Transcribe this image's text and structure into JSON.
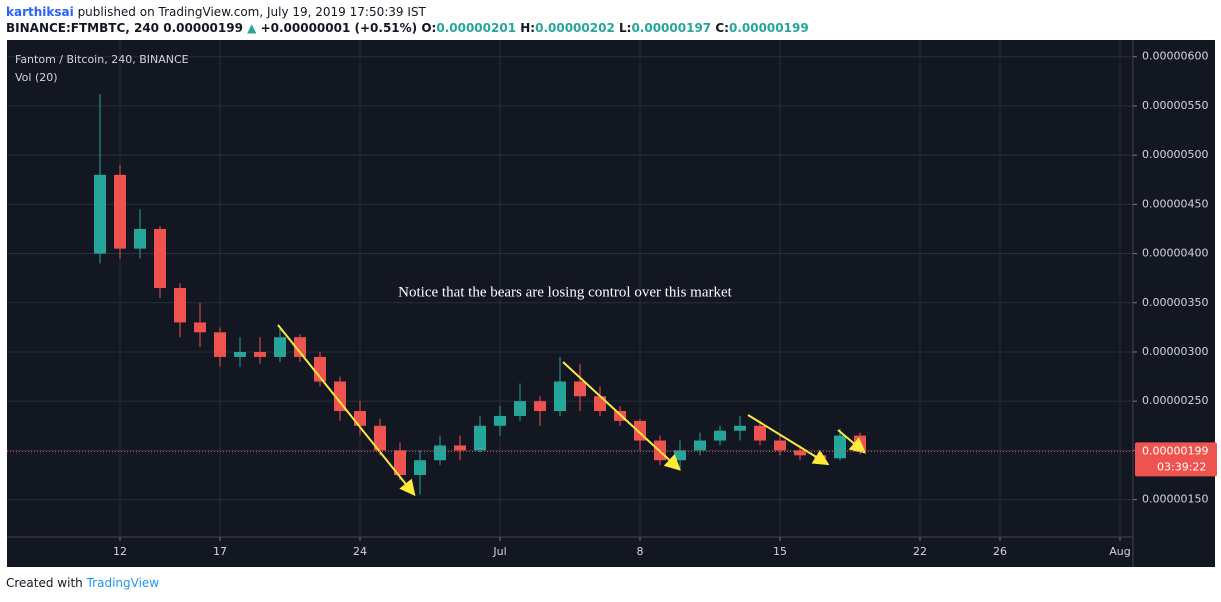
{
  "header": {
    "author": "karthiksai",
    "published": "published on TradingView.com, July 19, 2019 17:50:39 IST",
    "symbol": "BINANCE:FTMBTC, 240",
    "last": "0.00000199",
    "arrow": "▲",
    "change": "+0.00000001 (+0.51%)",
    "o_label": "O:",
    "o": "0.00000201",
    "h_label": "H:",
    "h": "0.00000202",
    "l_label": "L:",
    "l": "0.00000197",
    "c_label": "C:",
    "c": "0.00000199"
  },
  "chart_data": {
    "type": "candlestick",
    "title": "Fantom / Bitcoin, 240, BINANCE",
    "subtitle": "Vol (20)",
    "annotation": "Notice that the bears are losing control over this market",
    "up_color": "#26a69a",
    "down_color": "#ef5350",
    "x": [
      11,
      12,
      13,
      14,
      15,
      16,
      17,
      18,
      19,
      20,
      21,
      22,
      23,
      24,
      25,
      26,
      27,
      28,
      29,
      30,
      31,
      32,
      33,
      34,
      35,
      36,
      37,
      38,
      39,
      40,
      41,
      42,
      43,
      44,
      45,
      46,
      47,
      48,
      49
    ],
    "open": [
      4e-06,
      4.8e-06,
      4.05e-06,
      4.25e-06,
      3.65e-06,
      3.3e-06,
      3.2e-06,
      2.95e-06,
      3e-06,
      2.95e-06,
      3.15e-06,
      2.95e-06,
      2.7e-06,
      2.4e-06,
      2.25e-06,
      2e-06,
      1.75e-06,
      1.9e-06,
      2.05e-06,
      2e-06,
      2.25e-06,
      2.35e-06,
      2.5e-06,
      2.4e-06,
      2.7e-06,
      2.55e-06,
      2.4e-06,
      2.3e-06,
      2.1e-06,
      1.9e-06,
      2e-06,
      2.1e-06,
      2.2e-06,
      2.25e-06,
      2.1e-06,
      2e-06,
      1.95e-06,
      1.92e-06,
      2.15e-06
    ],
    "high": [
      5.62e-06,
      4.9e-06,
      4.45e-06,
      4.28e-06,
      3.7e-06,
      3.5e-06,
      3.25e-06,
      3.15e-06,
      3.15e-06,
      3.25e-06,
      3.18e-06,
      3e-06,
      2.75e-06,
      2.5e-06,
      2.32e-06,
      2.08e-06,
      2e-06,
      2.15e-06,
      2.15e-06,
      2.35e-06,
      2.45e-06,
      2.68e-06,
      2.55e-06,
      2.95e-06,
      2.88e-06,
      2.65e-06,
      2.45e-06,
      2.32e-06,
      2.15e-06,
      2.1e-06,
      2.18e-06,
      2.25e-06,
      2.35e-06,
      2.3e-06,
      2.15e-06,
      2.05e-06,
      2e-06,
      2.22e-06,
      2.18e-06
    ],
    "low": [
      3.9e-06,
      3.95e-06,
      3.95e-06,
      3.55e-06,
      3.15e-06,
      3.05e-06,
      2.85e-06,
      2.85e-06,
      2.88e-06,
      2.9e-06,
      2.9e-06,
      2.65e-06,
      2.3e-06,
      2.15e-06,
      1.95e-06,
      1.7e-06,
      1.55e-06,
      1.85e-06,
      1.9e-06,
      1.98e-06,
      2.15e-06,
      2.3e-06,
      2.25e-06,
      2.35e-06,
      2.4e-06,
      2.35e-06,
      2.25e-06,
      2e-06,
      1.85e-06,
      1.8e-06,
      1.95e-06,
      2.05e-06,
      2.1e-06,
      2.05e-06,
      1.95e-06,
      1.9e-06,
      1.88e-06,
      1.9e-06,
      1.96e-06
    ],
    "close": [
      4.8e-06,
      4.05e-06,
      4.25e-06,
      3.65e-06,
      3.3e-06,
      3.2e-06,
      2.95e-06,
      3e-06,
      2.95e-06,
      3.15e-06,
      2.95e-06,
      2.7e-06,
      2.4e-06,
      2.25e-06,
      2e-06,
      1.75e-06,
      1.9e-06,
      2.05e-06,
      2e-06,
      2.25e-06,
      2.35e-06,
      2.5e-06,
      2.4e-06,
      2.7e-06,
      2.55e-06,
      2.4e-06,
      2.3e-06,
      2.1e-06,
      1.9e-06,
      2e-06,
      2.1e-06,
      2.2e-06,
      2.25e-06,
      2.1e-06,
      2e-06,
      1.95e-06,
      1.92e-06,
      2.15e-06,
      1.99e-06
    ],
    "xlim": [
      6.35,
      62.65
    ],
    "xticks": [
      {
        "value": 12,
        "label": "12"
      },
      {
        "value": 17,
        "label": "17"
      },
      {
        "value": 24,
        "label": "24"
      },
      {
        "value": 31,
        "label": "Jul"
      },
      {
        "value": 38,
        "label": "8"
      },
      {
        "value": 45,
        "label": "15"
      },
      {
        "value": 52,
        "label": "22"
      },
      {
        "value": 56,
        "label": "26"
      },
      {
        "value": 62,
        "label": "Aug"
      }
    ],
    "ylim": [
      1.12e-06,
      6.17e-06
    ],
    "yticks": [
      {
        "value": 1.5e-06,
        "label": "0.00000150"
      },
      {
        "value": 2e-06,
        "label": "0.00000200"
      },
      {
        "value": 2.5e-06,
        "label": "0.00000250"
      },
      {
        "value": 3e-06,
        "label": "0.00000300"
      },
      {
        "value": 3.5e-06,
        "label": "0.00000350"
      },
      {
        "value": 4e-06,
        "label": "0.00000400"
      },
      {
        "value": 4.5e-06,
        "label": "0.00000450"
      },
      {
        "value": 5e-06,
        "label": "0.00000500"
      },
      {
        "value": 5.5e-06,
        "label": "0.00000550"
      },
      {
        "value": 6e-06,
        "label": "0.00000600"
      }
    ],
    "grid": true,
    "last_price": {
      "value": 1.99e-06,
      "label": "0.00000199",
      "countdown": "03:39:22"
    }
  },
  "footer": {
    "created": "Created with",
    "brand": "TradingView"
  }
}
